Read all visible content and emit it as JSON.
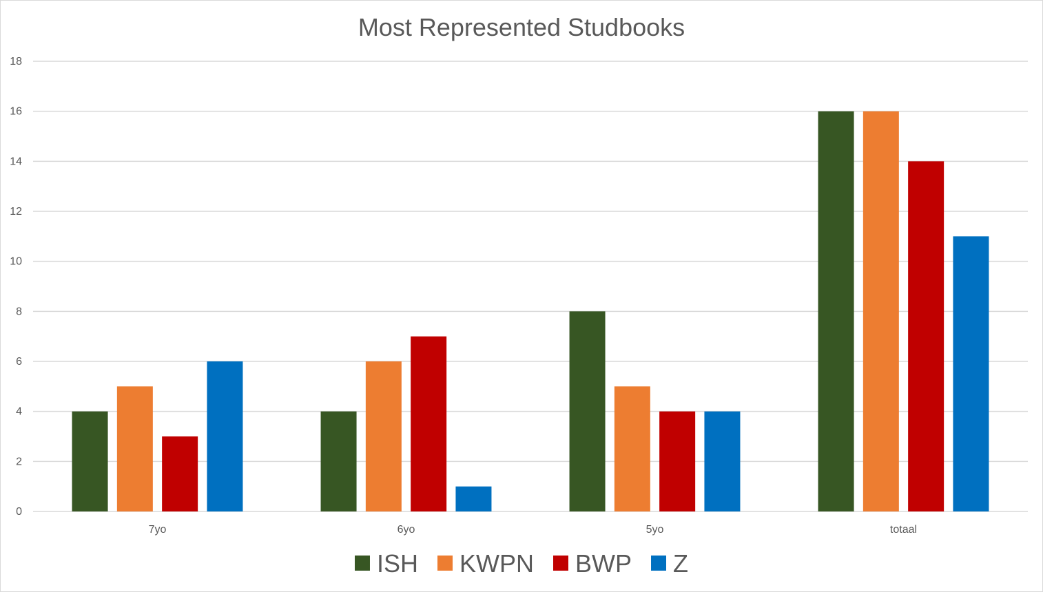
{
  "chart_data": {
    "type": "bar",
    "title": "Most Represented Studbooks",
    "xlabel": "",
    "ylabel": "",
    "categories": [
      "7yo",
      "6yo",
      "5yo",
      "totaal"
    ],
    "series": [
      {
        "name": "ISH",
        "color": "#375623",
        "values": [
          4,
          4,
          8,
          16
        ]
      },
      {
        "name": "KWPN",
        "color": "#ED7D31",
        "values": [
          5,
          6,
          5,
          16
        ]
      },
      {
        "name": "BWP",
        "color": "#C00000",
        "values": [
          3,
          7,
          4,
          14
        ]
      },
      {
        "name": "Z",
        "color": "#0070C0",
        "values": [
          6,
          1,
          4,
          11
        ]
      }
    ],
    "ylim": [
      0,
      18
    ],
    "yticks": [
      0,
      2,
      4,
      6,
      8,
      10,
      12,
      14,
      16,
      18
    ],
    "grid": true,
    "legend_position": "bottom"
  }
}
